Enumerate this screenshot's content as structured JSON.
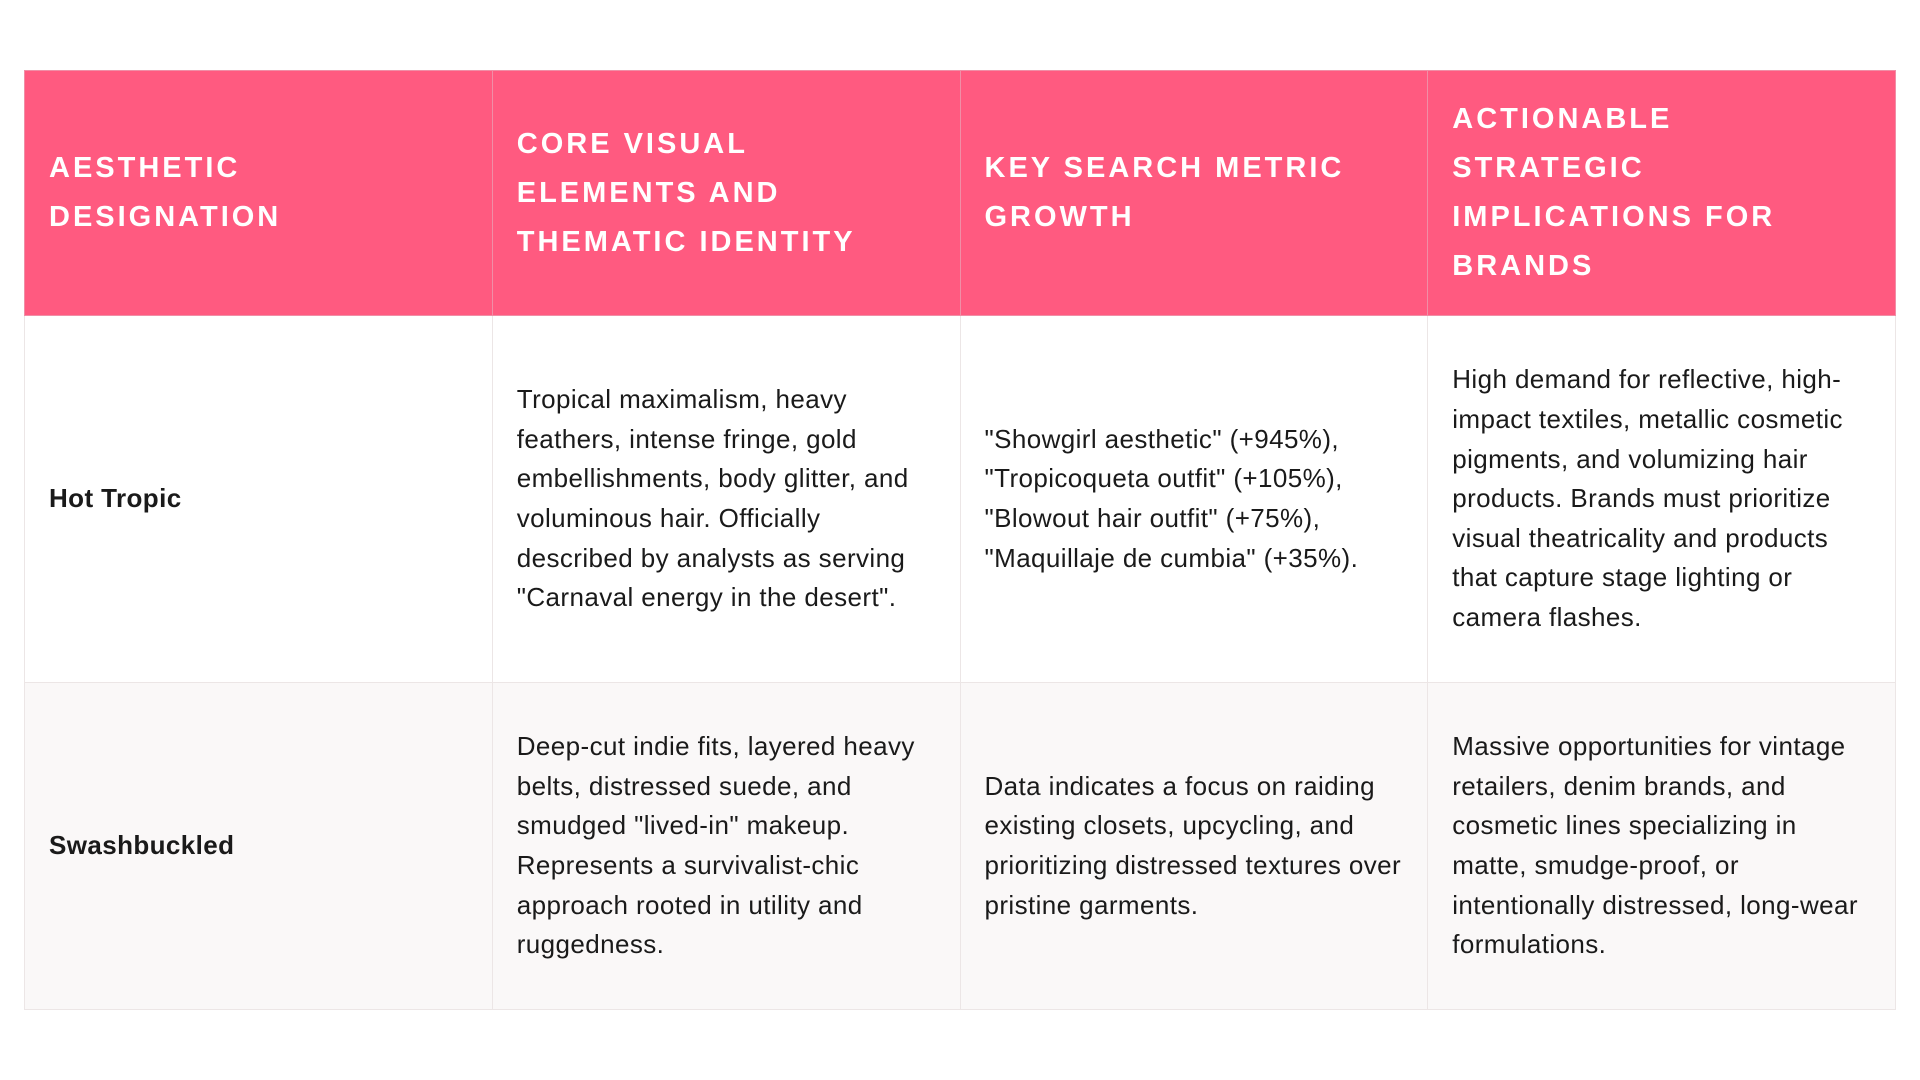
{
  "table": {
    "headers": [
      "Aesthetic Designation",
      "Core Visual Elements and Thematic Identity",
      "Key Search Metric Growth",
      "Actionable Strategic Implications for Brands"
    ],
    "rows": [
      {
        "name": "Hot Tropic",
        "visual": "Tropical maximalism, heavy feathers, intense fringe, gold embellishments, body glitter, and voluminous hair. Officially described by analysts as serving \"Carnaval energy in the desert\".",
        "metric": "\"Showgirl aesthetic\" (+945%), \"Tropicoqueta outfit\" (+105%), \"Blowout hair outfit\" (+75%), \"Maquillaje de cumbia\" (+35%).",
        "implications": "High demand for reflective, high-impact textiles, metallic cosmetic pigments, and volumizing hair products. Brands must prioritize visual theatricality and products that capture stage lighting or camera flashes."
      },
      {
        "name": "Swashbuckled",
        "visual": "Deep-cut indie fits, layered heavy belts, distressed suede, and smudged \"lived-in\" makeup. Represents a survivalist-chic approach rooted in utility and ruggedness.",
        "metric": "Data indicates a focus on raiding existing closets, upcycling, and prioritizing distressed textures over pristine garments.",
        "implications": "Massive opportunities for vintage retailers, denim brands, and cosmetic lines specializing in matte, smudge-proof, or intentionally distressed, long-wear formulations."
      }
    ]
  },
  "colors": {
    "header_bg": "#ff5a80",
    "alt_row_bg": "#faf8f8"
  }
}
